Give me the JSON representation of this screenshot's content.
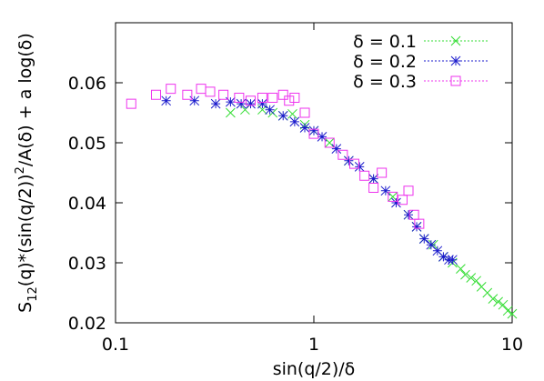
{
  "chart_data": {
    "type": "scatter",
    "xlabel": "sin(q/2)/δ",
    "ylabel": [
      {
        "text": "S",
        "shift": "base"
      },
      {
        "text": "12",
        "shift": "sub"
      },
      {
        "text": "(q)*(sin(q/2))",
        "shift": "base"
      },
      {
        "text": "2",
        "shift": "super"
      },
      {
        "text": "/A(δ) + a log(δ)",
        "shift": "base"
      }
    ],
    "xscale": "log",
    "xlim": [
      0.1,
      10
    ],
    "xticks": [
      0.1,
      1,
      10
    ],
    "ylim": [
      0.02,
      0.07
    ],
    "yticks": [
      0.02,
      0.03,
      0.04,
      0.05,
      0.06
    ],
    "legend": "top-right",
    "series": [
      {
        "name": "δ = 0.1",
        "color": "#33dd33",
        "marker": "x",
        "x": [
          0.38,
          0.45,
          0.55,
          0.62,
          0.7,
          0.78,
          0.9,
          1.0,
          1.2,
          1.5,
          2.0,
          2.5,
          3.0,
          3.3,
          3.6,
          4.0,
          4.5,
          5.0,
          5.5,
          5.8,
          6.2,
          6.6,
          7.0,
          7.5,
          8.0,
          8.5,
          9.0,
          9.5,
          10.0
        ],
        "values": [
          0.055,
          0.0555,
          0.0555,
          0.055,
          0.0545,
          0.0548,
          0.053,
          0.052,
          0.05,
          0.047,
          0.044,
          0.041,
          0.038,
          0.036,
          0.034,
          0.033,
          0.031,
          0.03,
          0.029,
          0.028,
          0.0275,
          0.027,
          0.026,
          0.025,
          0.024,
          0.0235,
          0.023,
          0.022,
          0.0215
        ]
      },
      {
        "name": "δ = 0.2",
        "color": "#1a1acc",
        "marker": "asterisk",
        "x": [
          0.18,
          0.25,
          0.32,
          0.38,
          0.43,
          0.48,
          0.55,
          0.6,
          0.7,
          0.8,
          0.9,
          1.0,
          1.1,
          1.3,
          1.5,
          1.7,
          2.0,
          2.3,
          2.6,
          3.0,
          3.3,
          3.6,
          3.9,
          4.2,
          4.5,
          4.8,
          5.0
        ],
        "values": [
          0.057,
          0.057,
          0.0565,
          0.0568,
          0.0565,
          0.0565,
          0.0565,
          0.0555,
          0.0545,
          0.0535,
          0.0525,
          0.052,
          0.051,
          0.049,
          0.047,
          0.046,
          0.044,
          0.042,
          0.04,
          0.038,
          0.036,
          0.034,
          0.033,
          0.032,
          0.031,
          0.0305,
          0.0305
        ]
      },
      {
        "name": "δ = 0.3",
        "color": "#ee33ee",
        "marker": "square",
        "x": [
          0.12,
          0.16,
          0.19,
          0.23,
          0.27,
          0.3,
          0.35,
          0.42,
          0.48,
          0.55,
          0.62,
          0.7,
          0.75,
          0.8,
          0.9,
          1.0,
          1.2,
          1.4,
          1.6,
          1.8,
          2.0,
          2.2,
          2.5,
          2.8,
          3.0,
          3.2,
          3.4
        ],
        "values": [
          0.0565,
          0.058,
          0.059,
          0.058,
          0.059,
          0.0585,
          0.058,
          0.0575,
          0.057,
          0.0575,
          0.0575,
          0.058,
          0.057,
          0.0575,
          0.055,
          0.0515,
          0.05,
          0.048,
          0.0465,
          0.0445,
          0.0425,
          0.045,
          0.041,
          0.0405,
          0.042,
          0.038,
          0.0365
        ]
      }
    ]
  }
}
